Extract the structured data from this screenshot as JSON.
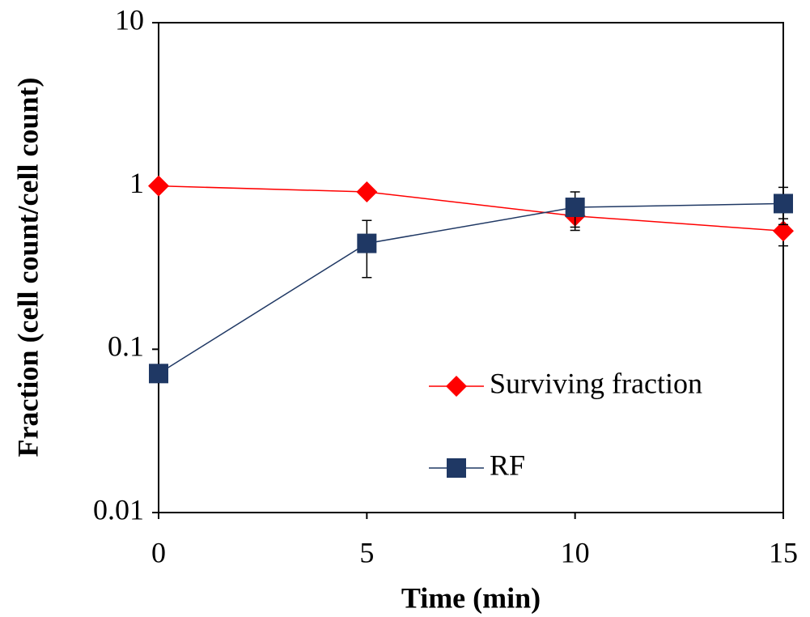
{
  "chart_data": {
    "type": "line",
    "x_label": "Time (min)",
    "y_label": "Fraction (cell count/cell count)",
    "x": [
      0,
      5,
      10,
      15
    ],
    "xlim": [
      0,
      15
    ],
    "xticks": [
      0,
      5,
      10,
      15
    ],
    "ylim": [
      0.01,
      10
    ],
    "yticks": [
      0.01,
      0.1,
      1,
      10
    ],
    "log_y": true,
    "grid": false,
    "legend": "lower right",
    "series": [
      {
        "name": "Surviving fraction",
        "color": "#ff0000",
        "marker": "diamond",
        "values": [
          1.0,
          0.92,
          0.655,
          0.53
        ],
        "errors": [
          0.05,
          0.05,
          0.12,
          0.1
        ]
      },
      {
        "name": "RF",
        "color": "#1f3864",
        "marker": "square",
        "values": [
          0.071,
          0.445,
          0.74,
          0.78
        ],
        "errors": [
          0,
          0.17,
          0.18,
          0.2
        ]
      }
    ]
  }
}
